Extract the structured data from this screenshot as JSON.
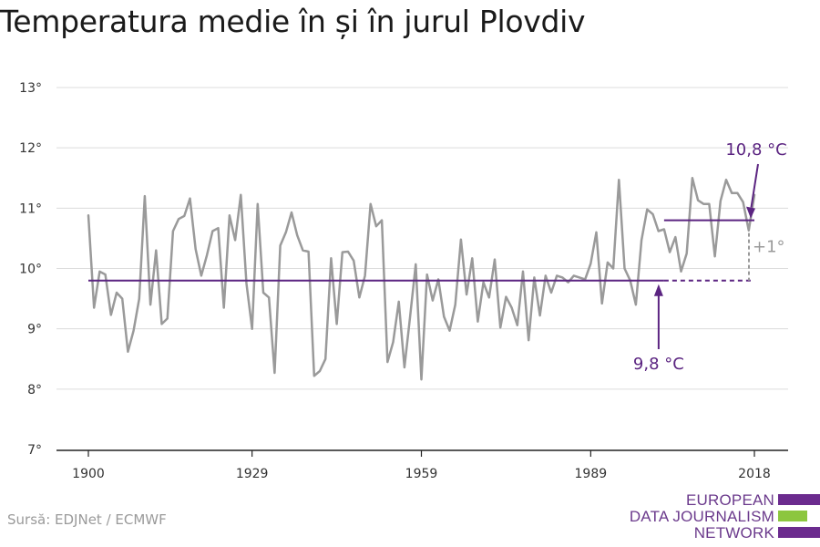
{
  "chart_data": {
    "type": "line",
    "title": "Temperatura medie în și în jurul Plovdiv",
    "source": "Sursă: EDJNet / ECMWF",
    "xlabel": "",
    "ylabel": "",
    "xlim": [
      1900,
      2018
    ],
    "ylim": [
      7,
      13
    ],
    "x_ticks": [
      1900,
      1929,
      1959,
      1989,
      2018
    ],
    "x_tick_labels": [
      "1900",
      "1929",
      "1959",
      "1989",
      "2018"
    ],
    "y_ticks": [
      7,
      8,
      9,
      10,
      11,
      12,
      13
    ],
    "y_tick_labels": [
      "7°",
      "8°",
      "9°",
      "10°",
      "11°",
      "12°",
      "13°"
    ],
    "grid": "horizontal",
    "series": [
      {
        "color": "#9a9a9a",
        "x": [
          1900,
          1901,
          1902,
          1903,
          1904,
          1905,
          1906,
          1907,
          1908,
          1909,
          1910,
          1911,
          1912,
          1913,
          1914,
          1915,
          1916,
          1917,
          1918,
          1919,
          1920,
          1921,
          1922,
          1923,
          1924,
          1925,
          1926,
          1927,
          1928,
          1929,
          1930,
          1931,
          1932,
          1933,
          1934,
          1935,
          1936,
          1937,
          1938,
          1939,
          1940,
          1941,
          1942,
          1943,
          1944,
          1945,
          1946,
          1947,
          1948,
          1949,
          1950,
          1951,
          1952,
          1953,
          1954,
          1955,
          1956,
          1957,
          1958,
          1959,
          1960,
          1961,
          1962,
          1963,
          1964,
          1965,
          1966,
          1967,
          1968,
          1969,
          1970,
          1971,
          1972,
          1973,
          1974,
          1975,
          1976,
          1977,
          1978,
          1979,
          1980,
          1981,
          1982,
          1983,
          1984,
          1985,
          1986,
          1987,
          1988,
          1989,
          1990,
          1991,
          1992,
          1993,
          1994,
          1995,
          1996,
          1997,
          1998,
          1999,
          2000,
          2001,
          2002,
          2003,
          2004,
          2005,
          2006,
          2007,
          2008,
          2009,
          2010,
          2011,
          2012,
          2013,
          2014,
          2015,
          2016,
          2017,
          2018
        ],
        "values": [
          10.88,
          9.35,
          9.95,
          9.9,
          9.23,
          9.6,
          9.5,
          8.62,
          8.97,
          9.5,
          11.2,
          9.4,
          10.3,
          9.08,
          9.17,
          10.62,
          10.82,
          10.87,
          11.16,
          10.32,
          9.88,
          10.22,
          10.62,
          10.67,
          9.35,
          10.88,
          10.47,
          11.22,
          9.75,
          9.0,
          11.07,
          9.6,
          9.52,
          8.27,
          10.38,
          10.6,
          10.93,
          10.55,
          10.3,
          10.28,
          8.22,
          8.3,
          8.5,
          10.17,
          9.08,
          10.27,
          10.28,
          10.13,
          9.52,
          9.88,
          11.07,
          10.7,
          10.8,
          8.45,
          8.78,
          9.45,
          8.36,
          9.2,
          10.07,
          8.16,
          9.9,
          9.47,
          9.82,
          9.2,
          8.97,
          9.4,
          10.48,
          9.57,
          10.17,
          9.12,
          9.77,
          9.52,
          10.15,
          9.02,
          9.53,
          9.35,
          9.06,
          9.95,
          8.81,
          9.85,
          9.22,
          9.88,
          9.6,
          9.88,
          9.85,
          9.77,
          9.88,
          9.85,
          9.82,
          10.08,
          10.6,
          9.42,
          10.1,
          10.0,
          11.47,
          10.0,
          9.8,
          9.4,
          10.47,
          10.98,
          10.9,
          10.62,
          10.65,
          10.27,
          10.52,
          9.95,
          10.25,
          11.5,
          11.13,
          11.07,
          11.07,
          10.2,
          11.12,
          11.47,
          11.25,
          11.25,
          11.1,
          10.63,
          11.22
        ]
      }
    ],
    "annotations": {
      "baseline": {
        "value": 9.8,
        "x_start": 1900,
        "x_end": 2002,
        "x_dash_end": 2018,
        "label": "9,8 °C",
        "color": "#5b2481"
      },
      "recent": {
        "value": 10.8,
        "x_start": 2002,
        "x_end": 2018,
        "label": "10,8 °C",
        "color": "#5b2481"
      },
      "difference": {
        "label": "+1°",
        "color": "#9a9a9a"
      }
    },
    "logo": {
      "lines": [
        "EUROPEAN",
        "DATA JOURNALISM",
        "NETWORK"
      ],
      "colors": [
        "#6b2b8e",
        "#8cc63f",
        "#6b2b8e"
      ]
    }
  }
}
